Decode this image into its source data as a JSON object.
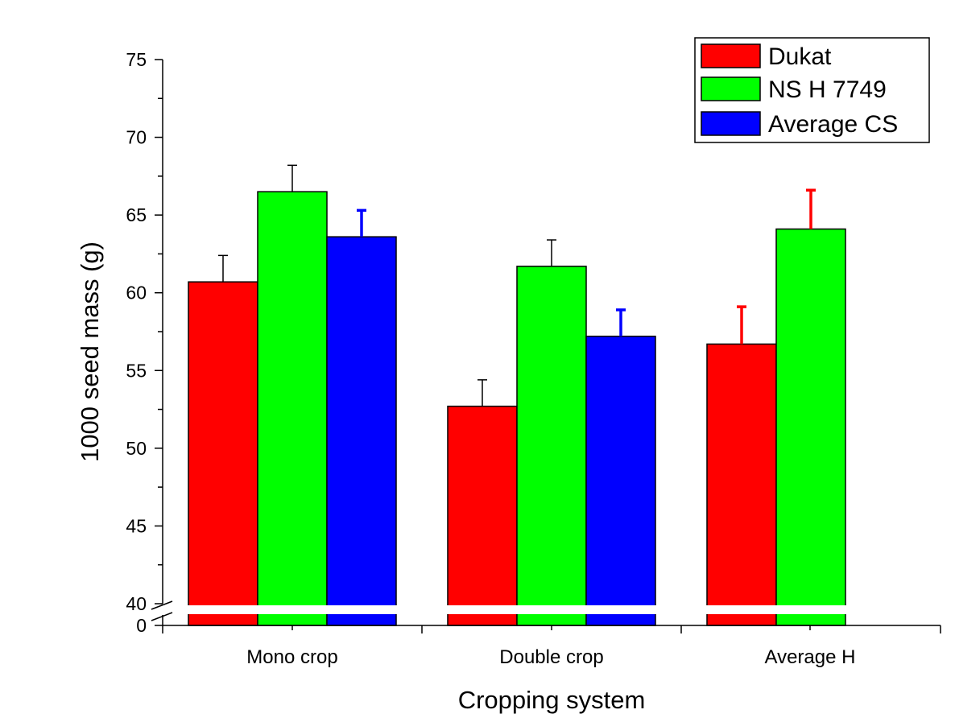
{
  "chart_data": {
    "type": "bar",
    "xlabel": "Cropping system",
    "ylabel": "1000 seed mass (g)",
    "categories": [
      "Mono crop",
      "Double crop",
      "Average H"
    ],
    "series": [
      {
        "name": "Dukat",
        "color": "#ff0000",
        "values": [
          60.7,
          52.7,
          56.7
        ],
        "errors": [
          1.7,
          1.7,
          2.4
        ],
        "error_color": "#000000"
      },
      {
        "name": "NS H 7749",
        "color": "#00ff00",
        "values": [
          66.5,
          61.7,
          64.1
        ],
        "errors": [
          1.7,
          1.7,
          2.5
        ],
        "error_color": "#000000"
      },
      {
        "name": "Average CS",
        "color": "#0000ff",
        "values": [
          63.6,
          57.2,
          null
        ],
        "errors": [
          1.7,
          1.7,
          null
        ],
        "error_color": "#0000ff"
      }
    ],
    "average_h_error_color": "#ff0000",
    "ylim": [
      0,
      75
    ],
    "axis_break": [
      0,
      40
    ],
    "yticks": [
      "0",
      "40",
      "45",
      "50",
      "55",
      "60",
      "65",
      "70",
      "75"
    ],
    "legend": {
      "placement": "top-right"
    },
    "grid": false
  }
}
